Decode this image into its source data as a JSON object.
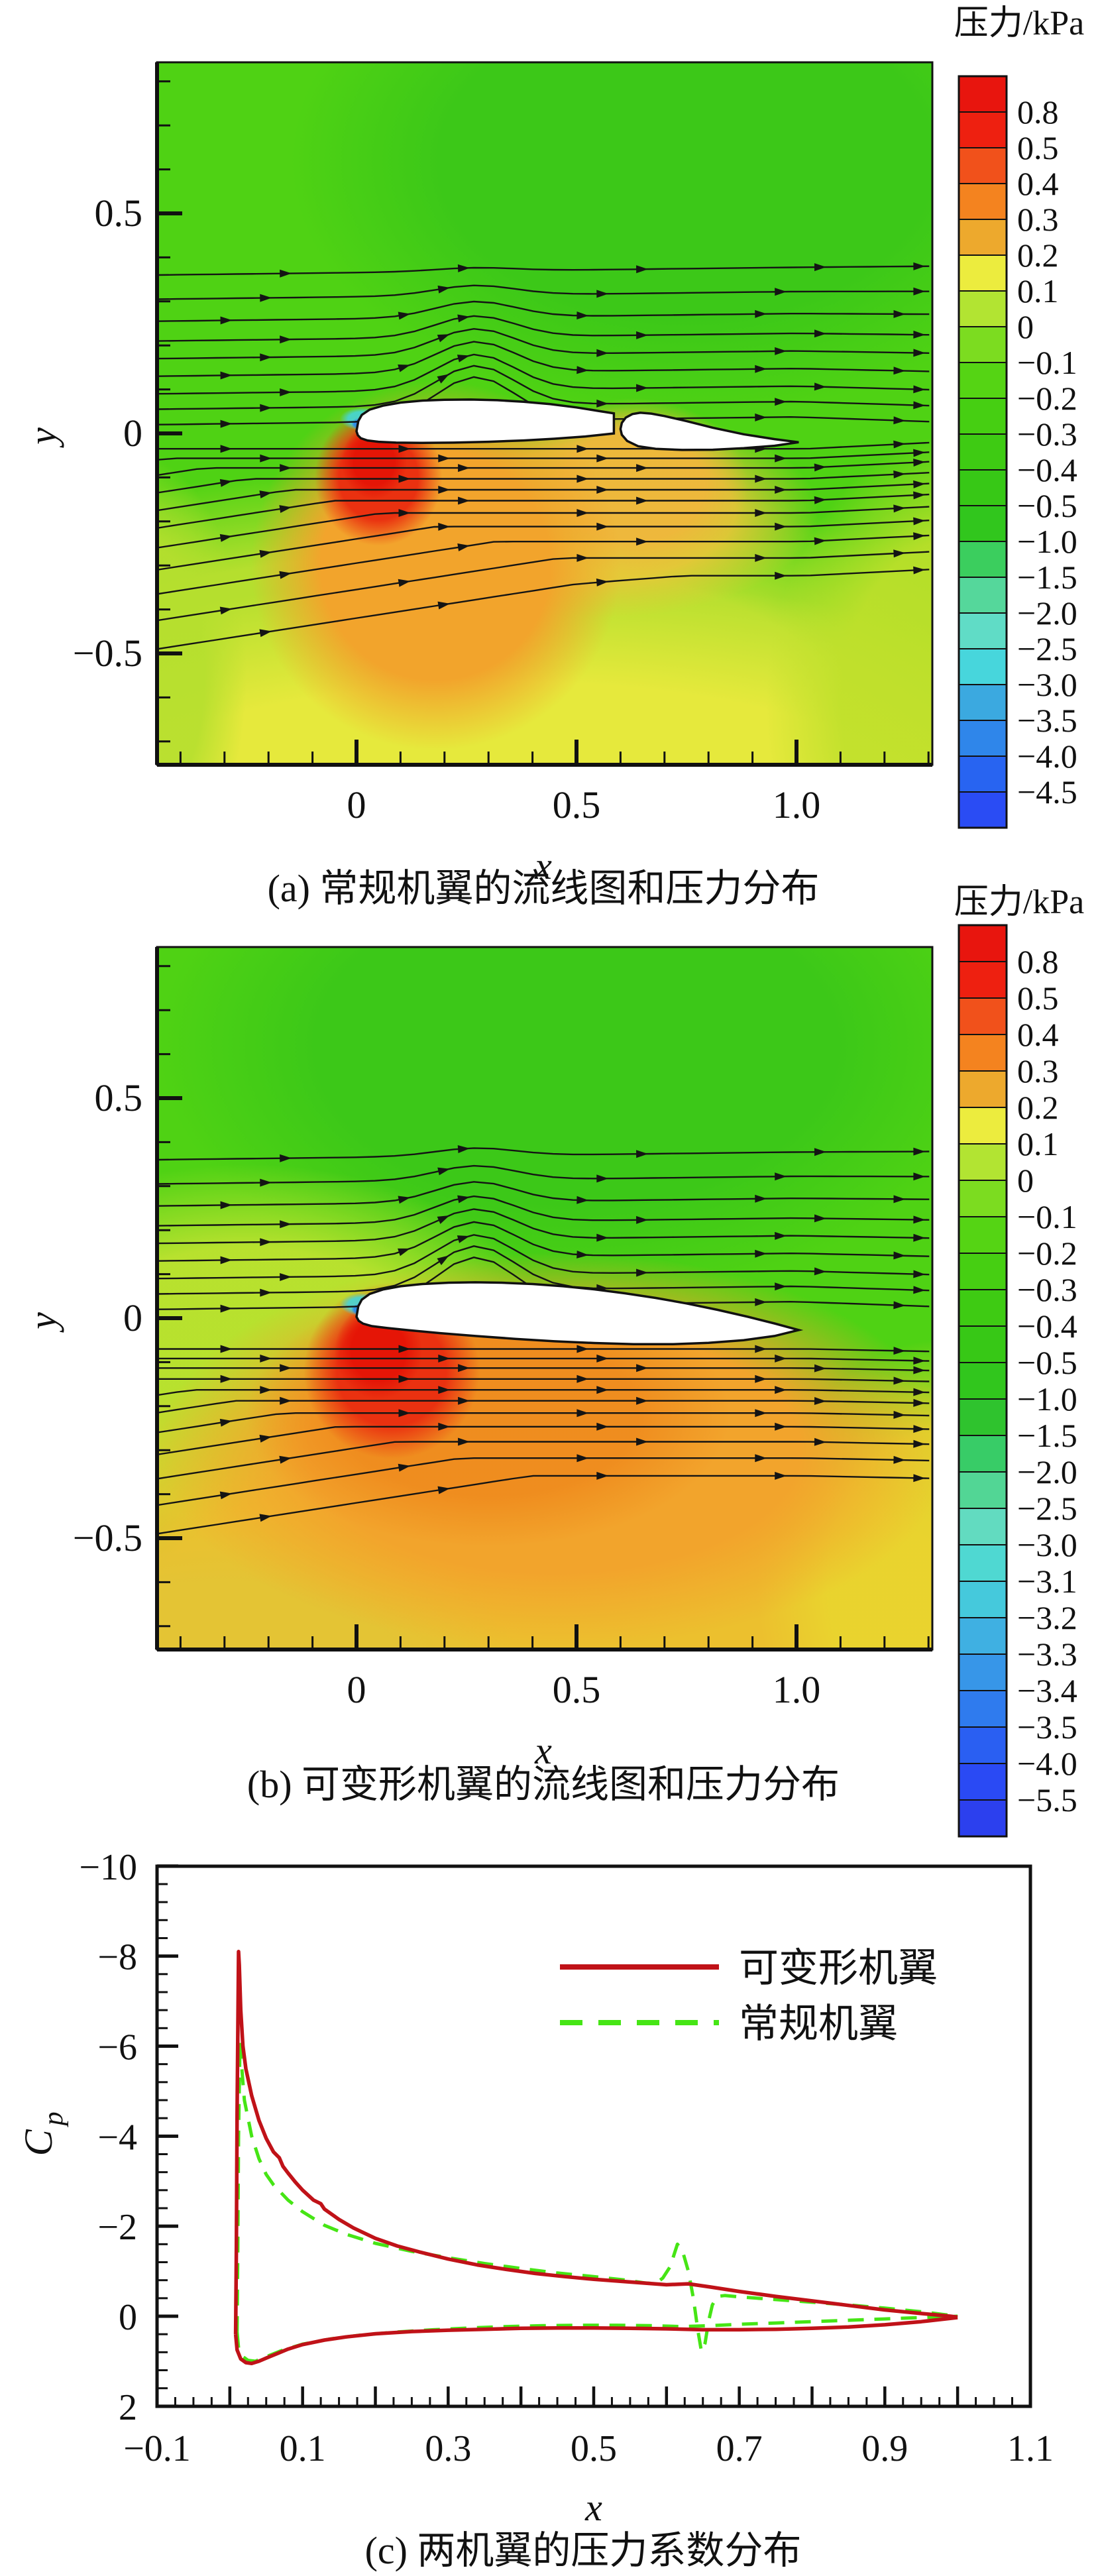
{
  "figure_title": "wing-flow-pressure-figure",
  "panel_a": {
    "caption": "(a) 常规机翼的流线图和压力分布",
    "x_axis_label": "x",
    "y_axis_label": "y",
    "x_tick_labels": [
      "0",
      "0.5",
      "1.0"
    ],
    "y_tick_labels": [
      "0.5",
      "0",
      "−0.5"
    ],
    "colorbar_title": "压力/kPa",
    "colorbar_labels": [
      "0.8",
      "0.5",
      "0.4",
      "0.3",
      "0.2",
      "0.1",
      "0",
      "−0.1",
      "−0.2",
      "−0.3",
      "−0.4",
      "−0.5",
      "−1.0",
      "−1.5",
      "−2.0",
      "−2.5",
      "−3.0",
      "−3.5",
      "−4.0",
      "−4.5"
    ],
    "colorbar_colors": [
      "#e8150e",
      "#ee2010",
      "#f1511b",
      "#f4831f",
      "#eda92d",
      "#ecec3e",
      "#b2e432",
      "#7cdc20",
      "#55d414",
      "#46cf12",
      "#3ecb13",
      "#37c816",
      "#31c61d",
      "#3bce5e",
      "#55d79b",
      "#60dcc6",
      "#47d6dc",
      "#3ba9e0",
      "#2f86ea",
      "#2864f1",
      "#2a4cf4"
    ]
  },
  "panel_b": {
    "caption": "(b) 可变形机翼的流线图和压力分布",
    "x_axis_label": "x",
    "y_axis_label": "y",
    "x_tick_labels": [
      "0",
      "0.5",
      "1.0"
    ],
    "y_tick_labels": [
      "0.5",
      "0",
      "−0.5"
    ],
    "colorbar_title": "压力/kPa",
    "colorbar_labels": [
      "0.8",
      "0.5",
      "0.4",
      "0.3",
      "0.2",
      "0.1",
      "0",
      "−0.1",
      "−0.2",
      "−0.3",
      "−0.4",
      "−0.5",
      "−1.0",
      "−1.5",
      "−2.0",
      "−2.5",
      "−3.0",
      "−3.1",
      "−3.2",
      "−3.3",
      "−3.4",
      "−3.5",
      "−4.0",
      "−5.5"
    ],
    "colorbar_colors": [
      "#e8150e",
      "#ee2010",
      "#f1511b",
      "#f4831f",
      "#eda92d",
      "#ecec3e",
      "#b2e432",
      "#7cdc20",
      "#55d414",
      "#46cf12",
      "#3ecb13",
      "#37c816",
      "#31c61d",
      "#2fc32e",
      "#38cc67",
      "#52d695",
      "#62dbc0",
      "#4fd8d2",
      "#45c9dc",
      "#3fb0e2",
      "#3796e8",
      "#2f7bee",
      "#2a5ff2",
      "#2a4af4",
      "#2c40ee"
    ]
  },
  "panel_c": {
    "caption": "(c) 两机翼的压力系数分布",
    "x_axis_label": "x",
    "y_axis_label_main": "C",
    "y_axis_label_sub": "p",
    "x_tick_labels": [
      "−0.1",
      "0.1",
      "0.3",
      "0.5",
      "0.7",
      "0.9",
      "1.1"
    ],
    "y_tick_labels": [
      "−10",
      "−8",
      "−6",
      "−4",
      "−2",
      "0",
      "2"
    ],
    "legend": [
      {
        "label": "可变形机翼",
        "color": "#c01218",
        "style": "solid"
      },
      {
        "label": "常规机翼",
        "color": "#46e515",
        "style": "dashed"
      }
    ]
  },
  "field_colors": {
    "base": "#4fd214",
    "dark_green": "#3cc818",
    "yellow_green": "#b5df2e",
    "yellow": "#e6e93c",
    "orange": "#f2a42c",
    "deep_orange": "#ef8c1e",
    "red": "#ea3110",
    "red_core": "#e51506",
    "cyan": "#45d5da",
    "blue": "#2f88e8",
    "warm_orange": "#ecc02e",
    "flap_orange": "#f0b63c",
    "corner_green": "#bfe02b",
    "dull_yellow": "#e3c435",
    "side_yellow": "#e9d52e",
    "mid_yellow_green": "#c3e331"
  },
  "chart_data": [
    {
      "panel": "a",
      "type": "heatmap",
      "title": "常规机翼的流线图和压力分布",
      "colorbar_title": "压力/kPa",
      "x_range": [
        -0.453,
        1.309
      ],
      "y_range": [
        -0.753,
        0.843
      ],
      "x_ticks": [
        0,
        0.5,
        1.0
      ],
      "y_ticks": [
        0.5,
        0,
        -0.5
      ],
      "colorbar_values": [
        0.8,
        0.5,
        0.4,
        0.3,
        0.2,
        0.1,
        0,
        -0.1,
        -0.2,
        -0.3,
        -0.4,
        -0.5,
        -1.0,
        -1.5,
        -2.0,
        -2.5,
        -3.0,
        -3.5,
        -4.0,
        -4.5
      ],
      "streamline_seeds_upper": [
        0.02,
        0.055,
        0.09,
        0.13,
        0.17,
        0.21,
        0.255,
        0.305,
        0.36
      ],
      "streamline_seeds_lower": [
        -0.025,
        -0.06,
        -0.095,
        -0.135,
        -0.175,
        -0.215,
        -0.26,
        -0.31,
        -0.365,
        -0.425,
        -0.49
      ]
    },
    {
      "panel": "b",
      "type": "heatmap",
      "title": "可变形机翼的流线图和压力分布",
      "colorbar_title": "压力/kPa",
      "x_range": [
        -0.453,
        1.309
      ],
      "y_range": [
        -0.753,
        0.843
      ],
      "x_ticks": [
        0,
        0.5,
        1.0
      ],
      "y_ticks": [
        0.5,
        0,
        -0.5
      ],
      "colorbar_values": [
        0.8,
        0.5,
        0.4,
        0.3,
        0.2,
        0.1,
        0,
        -0.1,
        -0.2,
        -0.3,
        -0.4,
        -0.5,
        -1.0,
        -1.5,
        -2.0,
        -2.5,
        -3.0,
        -3.1,
        -3.2,
        -3.3,
        -3.4,
        -3.5,
        -4.0,
        -5.5
      ],
      "streamline_seeds_upper": [
        0.02,
        0.055,
        0.09,
        0.13,
        0.17,
        0.21,
        0.255,
        0.305,
        0.36
      ],
      "streamline_seeds_lower": [
        -0.025,
        -0.06,
        -0.095,
        -0.135,
        -0.175,
        -0.215,
        -0.26,
        -0.31,
        -0.365,
        -0.425,
        -0.49
      ]
    },
    {
      "panel": "c",
      "type": "line",
      "xlabel": "x",
      "ylabel": "Cp",
      "xlim": [
        -0.1,
        1.1
      ],
      "ylim": [
        -10,
        2
      ],
      "y_axis_inverted": true,
      "x_ticks": [
        -0.1,
        0.1,
        0.3,
        0.5,
        0.7,
        0.9,
        1.1
      ],
      "y_ticks": [
        -10,
        -8,
        -6,
        -4,
        -2,
        0,
        2
      ],
      "legend_position": "top-right-inside",
      "series": [
        {
          "name": "可变形机翼",
          "color": "#c01218",
          "style": "solid",
          "upper": [
            [
              0.008,
              0.4
            ],
            [
              0.009,
              -1.5
            ],
            [
              0.01,
              -4.5
            ],
            [
              0.012,
              -8.1
            ],
            [
              0.013,
              -7.8
            ],
            [
              0.015,
              -6.8
            ],
            [
              0.018,
              -6.0
            ],
            [
              0.022,
              -5.5
            ],
            [
              0.03,
              -4.9
            ],
            [
              0.04,
              -4.35
            ],
            [
              0.05,
              -3.95
            ],
            [
              0.06,
              -3.65
            ],
            [
              0.068,
              -3.52
            ],
            [
              0.073,
              -3.33
            ],
            [
              0.08,
              -3.18
            ],
            [
              0.09,
              -2.98
            ],
            [
              0.1,
              -2.8
            ],
            [
              0.115,
              -2.58
            ],
            [
              0.125,
              -2.5
            ],
            [
              0.13,
              -2.38
            ],
            [
              0.15,
              -2.15
            ],
            [
              0.17,
              -1.96
            ],
            [
              0.2,
              -1.73
            ],
            [
              0.23,
              -1.56
            ],
            [
              0.26,
              -1.43
            ],
            [
              0.3,
              -1.27
            ],
            [
              0.34,
              -1.14
            ],
            [
              0.38,
              -1.04
            ],
            [
              0.42,
              -0.95
            ],
            [
              0.46,
              -0.88
            ],
            [
              0.5,
              -0.82
            ],
            [
              0.55,
              -0.76
            ],
            [
              0.6,
              -0.7
            ],
            [
              0.63,
              -0.72
            ],
            [
              0.66,
              -0.65
            ],
            [
              0.7,
              -0.55
            ],
            [
              0.75,
              -0.44
            ],
            [
              0.8,
              -0.34
            ],
            [
              0.85,
              -0.24
            ],
            [
              0.9,
              -0.14
            ],
            [
              0.95,
              -0.06
            ],
            [
              0.99,
              0.0
            ],
            [
              1.0,
              0.02
            ]
          ],
          "lower": [
            [
              0.008,
              0.4
            ],
            [
              0.01,
              0.75
            ],
            [
              0.015,
              0.95
            ],
            [
              0.022,
              1.03
            ],
            [
              0.03,
              1.05
            ],
            [
              0.04,
              1.0
            ],
            [
              0.05,
              0.93
            ],
            [
              0.065,
              0.83
            ],
            [
              0.08,
              0.73
            ],
            [
              0.1,
              0.63
            ],
            [
              0.13,
              0.53
            ],
            [
              0.16,
              0.46
            ],
            [
              0.2,
              0.39
            ],
            [
              0.25,
              0.34
            ],
            [
              0.3,
              0.31
            ],
            [
              0.35,
              0.29
            ],
            [
              0.4,
              0.27
            ],
            [
              0.45,
              0.26
            ],
            [
              0.5,
              0.26
            ],
            [
              0.55,
              0.27
            ],
            [
              0.6,
              0.28
            ],
            [
              0.65,
              0.3
            ],
            [
              0.7,
              0.3
            ],
            [
              0.75,
              0.29
            ],
            [
              0.8,
              0.27
            ],
            [
              0.85,
              0.24
            ],
            [
              0.9,
              0.19
            ],
            [
              0.95,
              0.12
            ],
            [
              1.0,
              0.03
            ]
          ]
        },
        {
          "name": "常规机翼",
          "color": "#46e515",
          "style": "dashed",
          "upper": [
            [
              0.01,
              0.35
            ],
            [
              0.011,
              -1.5
            ],
            [
              0.012,
              -4.0
            ],
            [
              0.014,
              -6.1
            ],
            [
              0.016,
              -5.6
            ],
            [
              0.02,
              -4.8
            ],
            [
              0.03,
              -4.0
            ],
            [
              0.04,
              -3.5
            ],
            [
              0.05,
              -3.15
            ],
            [
              0.06,
              -2.92
            ],
            [
              0.08,
              -2.58
            ],
            [
              0.1,
              -2.32
            ],
            [
              0.13,
              -2.02
            ],
            [
              0.16,
              -1.82
            ],
            [
              0.2,
              -1.62
            ],
            [
              0.25,
              -1.44
            ],
            [
              0.3,
              -1.3
            ],
            [
              0.35,
              -1.17
            ],
            [
              0.4,
              -1.06
            ],
            [
              0.45,
              -0.96
            ],
            [
              0.5,
              -0.88
            ],
            [
              0.54,
              -0.81
            ],
            [
              0.57,
              -0.74
            ],
            [
              0.585,
              -0.72
            ],
            [
              0.595,
              -0.85
            ],
            [
              0.605,
              -1.1
            ],
            [
              0.615,
              -1.6
            ],
            [
              0.622,
              -1.45
            ],
            [
              0.63,
              -1.0
            ],
            [
              0.637,
              -0.4
            ],
            [
              0.643,
              0.3
            ],
            [
              0.648,
              0.78
            ],
            [
              0.653,
              0.6
            ],
            [
              0.658,
              0.1
            ],
            [
              0.663,
              -0.25
            ],
            [
              0.67,
              -0.44
            ],
            [
              0.68,
              -0.46
            ],
            [
              0.7,
              -0.43
            ],
            [
              0.75,
              -0.37
            ],
            [
              0.8,
              -0.31
            ],
            [
              0.85,
              -0.25
            ],
            [
              0.9,
              -0.18
            ],
            [
              0.95,
              -0.1
            ],
            [
              0.98,
              -0.04
            ],
            [
              1.0,
              0.0
            ]
          ],
          "lower": [
            [
              0.01,
              0.35
            ],
            [
              0.012,
              0.7
            ],
            [
              0.018,
              0.9
            ],
            [
              0.025,
              0.98
            ],
            [
              0.035,
              1.0
            ],
            [
              0.05,
              0.9
            ],
            [
              0.07,
              0.77
            ],
            [
              0.1,
              0.62
            ],
            [
              0.14,
              0.5
            ],
            [
              0.18,
              0.42
            ],
            [
              0.23,
              0.35
            ],
            [
              0.28,
              0.3
            ],
            [
              0.33,
              0.26
            ],
            [
              0.38,
              0.23
            ],
            [
              0.43,
              0.21
            ],
            [
              0.48,
              0.2
            ],
            [
              0.53,
              0.2
            ],
            [
              0.58,
              0.21
            ],
            [
              0.62,
              0.23
            ],
            [
              0.66,
              0.21
            ],
            [
              0.7,
              0.18
            ],
            [
              0.75,
              0.15
            ],
            [
              0.8,
              0.12
            ],
            [
              0.85,
              0.09
            ],
            [
              0.9,
              0.06
            ],
            [
              0.95,
              0.03
            ],
            [
              1.0,
              0.0
            ]
          ]
        }
      ]
    }
  ]
}
